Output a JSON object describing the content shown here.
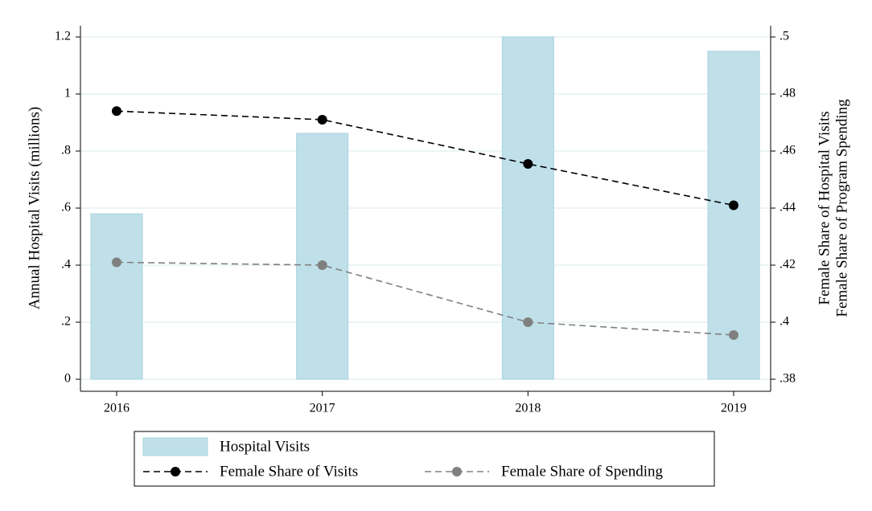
{
  "chart_data": {
    "type": "bar",
    "categories": [
      "2016",
      "2017",
      "2018",
      "2019"
    ],
    "ylabel": "Annual Hospital Visits (millions)",
    "y2label": [
      "Female Share of Hospital Visits",
      "Female Share of Program Spending"
    ],
    "ylim": [
      0,
      1.2
    ],
    "yticks": [
      0,
      {
        "value": 0.2,
        "label": ".2"
      },
      {
        "value": 0.4,
        "label": ".4"
      },
      {
        "value": 0.6,
        "label": ".6"
      },
      {
        "value": 0.8,
        "label": ".8"
      },
      1,
      {
        "value": 1.2,
        "label": "1.2"
      }
    ],
    "y2lim": [
      0.38,
      0.5
    ],
    "y2ticks": [
      {
        "value": 0.38,
        "label": ".38"
      },
      {
        "value": 0.4,
        "label": ".4"
      },
      {
        "value": 0.42,
        "label": ".42"
      },
      {
        "value": 0.44,
        "label": ".44"
      },
      {
        "value": 0.46,
        "label": ".46"
      },
      {
        "value": 0.48,
        "label": ".48"
      },
      {
        "value": 0.5,
        "label": ".5"
      }
    ],
    "grid": true,
    "series": [
      {
        "name": "Hospital Visits",
        "type": "bar",
        "color": "#bfe0e9",
        "values": [
          0.58,
          0.862,
          1.2,
          1.15
        ]
      },
      {
        "name": "Female Share of Visits",
        "type": "line",
        "axis": "y2",
        "color": "#000000",
        "values": [
          0.474,
          0.471,
          0.4555,
          0.441
        ]
      },
      {
        "name": "Female Share of Spending",
        "type": "line",
        "axis": "y2",
        "color": "#808080",
        "values": [
          0.421,
          0.42,
          0.4,
          0.3955
        ]
      }
    ]
  }
}
